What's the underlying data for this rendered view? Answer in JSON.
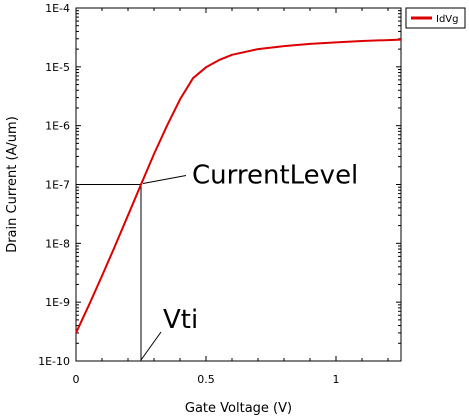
{
  "chart_data": {
    "type": "line",
    "xlabel": "Gate Voltage (V)",
    "ylabel": "Drain Current (A/um)",
    "xlim": [
      0,
      1.25
    ],
    "ylim": [
      1e-10,
      0.0001
    ],
    "yscale": "log",
    "x_ticks": [
      0,
      0.5,
      1
    ],
    "x_tick_labels": [
      "0",
      "0.5",
      "1"
    ],
    "y_ticks": [
      1e-10,
      1e-09,
      1e-08,
      1e-07,
      1e-06,
      1e-05,
      0.0001
    ],
    "y_tick_labels": [
      "1E-10",
      "1E-9",
      "1E-8",
      "1E-7",
      "1E-6",
      "1E-5",
      "1E-4"
    ],
    "grid": false,
    "legend_position": "top-right",
    "series": [
      {
        "name": "IdVg",
        "color": "#dd0000",
        "x": [
          0,
          0.05,
          0.1,
          0.15,
          0.2,
          0.25,
          0.3,
          0.35,
          0.4,
          0.45,
          0.5,
          0.55,
          0.6,
          0.7,
          0.8,
          0.9,
          1.0,
          1.1,
          1.2,
          1.25
        ],
        "y": [
          3e-10,
          9e-10,
          2.8e-09,
          9e-09,
          3e-08,
          1e-07,
          3.3e-07,
          1e-06,
          2.8e-06,
          6.4e-06,
          9.8e-06,
          1.3e-05,
          1.6e-05,
          2e-05,
          2.25e-05,
          2.45e-05,
          2.6e-05,
          2.75e-05,
          2.85e-05,
          2.9e-05
        ]
      }
    ],
    "annotations": [
      {
        "text": "CurrentLevel",
        "x": 0.25,
        "y": 1e-07
      },
      {
        "text": "Vti",
        "x": 0.25,
        "y": 1e-10
      }
    ],
    "guide_line": {
      "x": 0.25,
      "y": 1e-07
    }
  }
}
